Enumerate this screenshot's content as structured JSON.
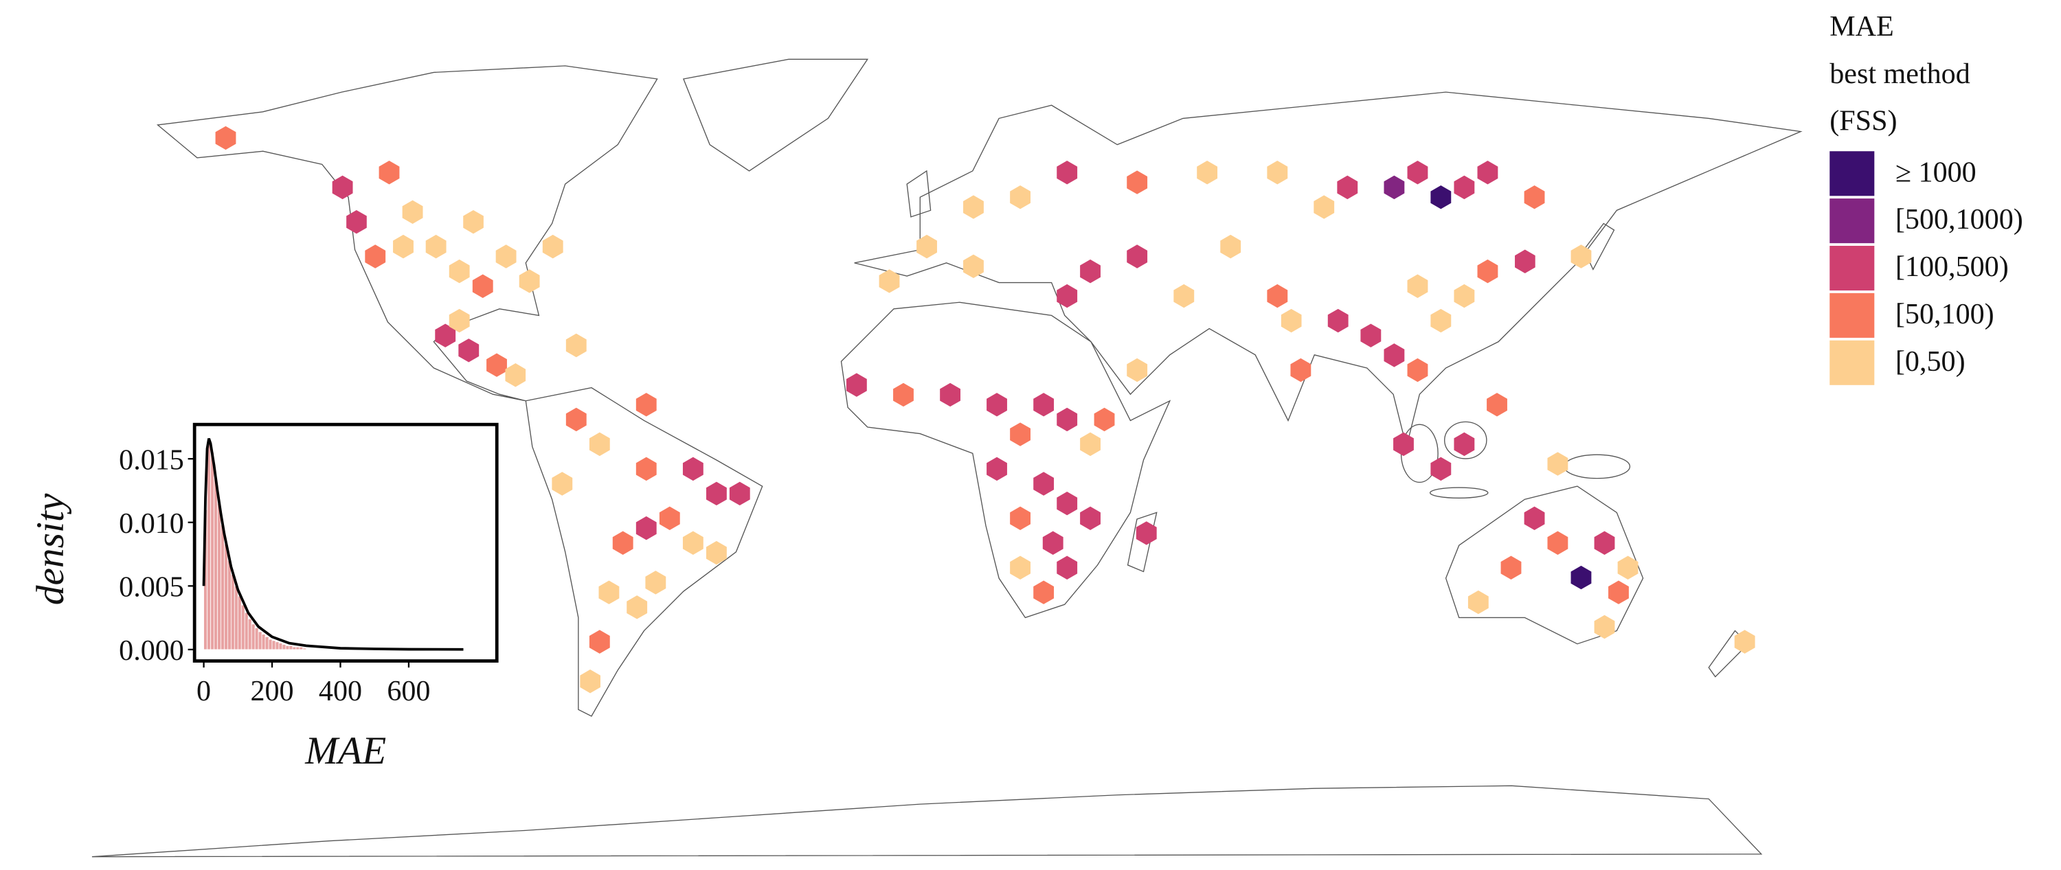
{
  "chart_data": [
    {
      "type": "hexmap",
      "legend_title": [
        "MAE",
        "best method",
        "(FSS)"
      ],
      "legend": [
        {
          "label": "≥ 1000",
          "min": 1000,
          "color": "#3b0f6f"
        },
        {
          "label": "[500,1000)",
          "min": 500,
          "color": "#822581"
        },
        {
          "label": "[100,500)",
          "min": 100,
          "color": "#cf4070"
        },
        {
          "label": "[50,100)",
          "min": 50,
          "color": "#f8785d"
        },
        {
          "label": "[0,50)",
          "min": 0,
          "color": "#fdcf8f"
        }
      ],
      "lon": [
        -122,
        -118,
        -112,
        -105,
        -100,
        -95,
        -90,
        -85,
        -80,
        -97,
        -110,
        -125,
        -115,
        -150,
        -103,
        -98,
        -92,
        -88,
        -100,
        -75,
        -75,
        -70,
        -60,
        -50,
        -45,
        -40,
        -55,
        -60,
        -65,
        -50,
        -45,
        -58,
        -62,
        -68,
        -70,
        -72,
        -78,
        -60,
        -15,
        -5,
        5,
        15,
        25,
        30,
        20,
        38,
        35,
        15,
        25,
        30,
        20,
        35,
        27,
        30,
        20,
        25,
        47,
        -8,
        30,
        10,
        0,
        10,
        20,
        30,
        45,
        60,
        75,
        90,
        100,
        105,
        110,
        115,
        120,
        130,
        85,
        65,
        45,
        35,
        55,
        75,
        78,
        88,
        80,
        95,
        100,
        105,
        110,
        115,
        120,
        128,
        105,
        140,
        45,
        102,
        110,
        115,
        122,
        135,
        130,
        135,
        125,
        145,
        148,
        140,
        118,
        145,
        150,
        175
      ],
      "lat": [
        45,
        38,
        40,
        40,
        35,
        32,
        38,
        33,
        40,
        45,
        47,
        52,
        55,
        62,
        22,
        19,
        16,
        14,
        25,
        20,
        5,
        0,
        -5,
        -5,
        -10,
        -10,
        -15,
        -17,
        -20,
        -20,
        -22,
        -28,
        -33,
        -30,
        -40,
        -48,
        -8,
        8,
        12,
        10,
        10,
        8,
        8,
        5,
        2,
        5,
        0,
        -5,
        -8,
        -12,
        -15,
        -15,
        -20,
        -25,
        -25,
        -30,
        -18,
        33,
        30,
        36,
        40,
        48,
        50,
        55,
        53,
        55,
        55,
        52,
        52,
        55,
        50,
        52,
        55,
        50,
        48,
        40,
        38,
        35,
        30,
        30,
        25,
        25,
        15,
        22,
        18,
        15,
        25,
        30,
        35,
        37,
        32,
        38,
        15,
        0,
        -5,
        0,
        8,
        -4,
        -15,
        -20,
        -25,
        -20,
        -30,
        -27,
        -32,
        -37,
        -25,
        -40
      ],
      "values": [
        120,
        60,
        30,
        20,
        30,
        60,
        20,
        30,
        20,
        20,
        40,
        200,
        70,
        80,
        120,
        200,
        60,
        30,
        30,
        40,
        80,
        30,
        60,
        120,
        200,
        150,
        80,
        300,
        60,
        40,
        30,
        30,
        20,
        40,
        60,
        30,
        40,
        70,
        150,
        80,
        120,
        150,
        300,
        200,
        80,
        60,
        40,
        120,
        300,
        120,
        60,
        200,
        150,
        300,
        40,
        80,
        100,
        40,
        200,
        30,
        30,
        20,
        40,
        150,
        60,
        20,
        30,
        150,
        600,
        300,
        1200,
        200,
        300,
        80,
        40,
        30,
        120,
        150,
        20,
        60,
        40,
        150,
        60,
        200,
        150,
        60,
        40,
        30,
        60,
        200,
        30,
        30,
        30,
        200,
        300,
        150,
        60,
        30,
        150,
        80,
        60,
        200,
        60,
        1100,
        40,
        40,
        30,
        20
      ]
    },
    {
      "type": "histogram",
      "xlabel": "MAE",
      "ylabel": "density",
      "bins": [
        0,
        10,
        20,
        30,
        40,
        50,
        60,
        70,
        80,
        90,
        100,
        110,
        120,
        130,
        140,
        150,
        160,
        170,
        180,
        190,
        200,
        210,
        220,
        230,
        240,
        250,
        260,
        270,
        280,
        290,
        300
      ],
      "values": [
        0.011,
        0.0165,
        0.0155,
        0.0135,
        0.0115,
        0.0098,
        0.0083,
        0.007,
        0.0059,
        0.005,
        0.0042,
        0.0035,
        0.0029,
        0.0024,
        0.002,
        0.0017,
        0.0014,
        0.0012,
        0.001,
        0.0008,
        0.0007,
        0.0006,
        0.0005,
        0.0004,
        0.0003,
        0.0003,
        0.0002,
        0.0002,
        0.0002,
        0.0001
      ],
      "color": "#e8a3a3",
      "line": {
        "x": [
          0,
          5,
          10,
          15,
          20,
          30,
          40,
          50,
          60,
          80,
          100,
          130,
          160,
          200,
          250,
          300,
          400,
          500,
          600,
          760
        ],
        "values": [
          0.005,
          0.012,
          0.0158,
          0.0166,
          0.0162,
          0.0145,
          0.0125,
          0.0107,
          0.0091,
          0.0065,
          0.0047,
          0.0029,
          0.0018,
          0.001,
          0.0005,
          0.0003,
          0.0001,
          5e-05,
          2e-05,
          1e-05
        ],
        "color": "#000000"
      },
      "xlim": [
        -27,
        858
      ],
      "ylim": [
        -0.0009,
        0.0177
      ],
      "xticks": [
        0,
        200,
        400,
        600
      ],
      "yticks": [
        {
          "value": 0,
          "label": "0.000"
        },
        {
          "value": 0.005,
          "label": "0.005"
        },
        {
          "value": 0.01,
          "label": "0.010"
        },
        {
          "value": 0.015,
          "label": "0.015"
        }
      ]
    }
  ]
}
